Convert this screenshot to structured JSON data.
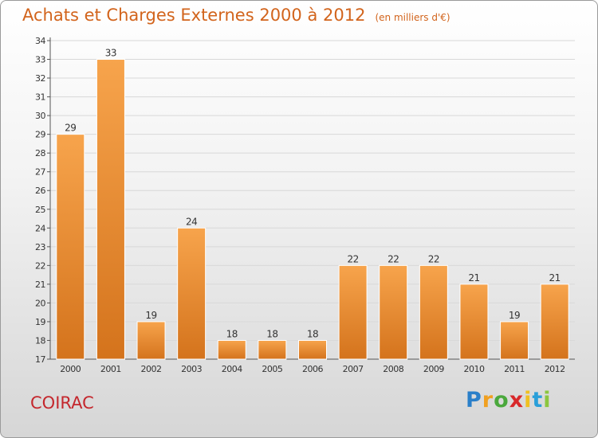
{
  "chart_data": {
    "type": "bar",
    "title": "Achats et Charges Externes 2000 à 2012",
    "subtitle": "(en milliers d'€)",
    "xlabel": "",
    "ylabel": "",
    "categories": [
      "2000",
      "2001",
      "2002",
      "2003",
      "2004",
      "2005",
      "2006",
      "2007",
      "2008",
      "2009",
      "2010",
      "2011",
      "2012"
    ],
    "values": [
      29,
      33,
      19,
      24,
      18,
      18,
      18,
      22,
      22,
      22,
      21,
      19,
      21
    ],
    "data_labels": [
      "29",
      "33",
      "19",
      "24",
      "18",
      "18",
      "18",
      "22",
      "22",
      "22",
      "21",
      "19",
      "21"
    ],
    "ylim": [
      17,
      34
    ],
    "yticks": [
      "17",
      "18",
      "19",
      "20",
      "21",
      "22",
      "23",
      "24",
      "25",
      "26",
      "27",
      "28",
      "29",
      "30",
      "31",
      "32",
      "33",
      "34"
    ],
    "grid": true,
    "legend": "none",
    "colors": {
      "bar_light": "#f7a44c",
      "bar_dark": "#d4731c",
      "text_accent": "#d2641c"
    }
  },
  "commune": "COIRAC",
  "logo": {
    "letters": [
      "P",
      "r",
      "o",
      "x",
      "i",
      "t",
      "i"
    ],
    "colors": [
      "#2a7fc9",
      "#f0a020",
      "#4aa83c",
      "#d8282a",
      "#f0c020",
      "#2a9fd9",
      "#8cc63f"
    ]
  }
}
